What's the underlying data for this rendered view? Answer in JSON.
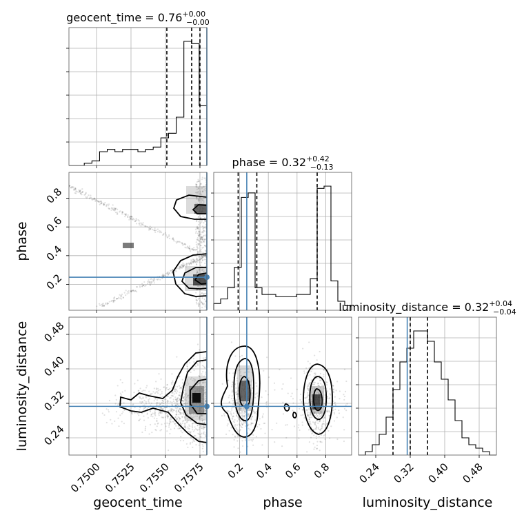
{
  "colors": {
    "truth": "#4682b4",
    "line": "#000000",
    "grid": "#b0b0b0"
  },
  "chart_data": {
    "type": "scatter",
    "subtype": "corner-plot",
    "grid": true,
    "truths": {
      "geocent_time": 0.758,
      "phase": 0.25,
      "luminosity_distance": 0.313
    },
    "parameters": [
      {
        "name": "geocent_time",
        "title_main": "geocent_time = 0.76",
        "title_sup": "+0.00",
        "title_sub": "−0.00",
        "axis_label": "geocent_time",
        "range": [
          0.748,
          0.758
        ],
        "ticks": [
          0.75,
          0.7525,
          0.755,
          0.7575
        ],
        "tick_labels": [
          "0.7500",
          "0.7525",
          "0.7550",
          "0.7575"
        ],
        "quantiles": [
          0.7551,
          0.7569,
          0.7575
        ],
        "hist_counts": [
          0,
          0,
          1,
          2,
          6,
          7,
          6,
          7,
          7,
          6,
          7,
          8,
          12,
          14,
          21,
          54,
          53,
          26
        ]
      },
      {
        "name": "phase",
        "title_main": "phase = 0.32",
        "title_sup": "+0.42",
        "title_sub": "−0.13",
        "axis_label": "phase",
        "range": [
          0.02,
          0.98
        ],
        "ticks": [
          0.2,
          0.4,
          0.6,
          0.8
        ],
        "tick_labels": [
          "0.2",
          "0.4",
          "0.6",
          "0.8"
        ],
        "quantiles": [
          0.19,
          0.32,
          0.74
        ],
        "hist_counts": [
          3,
          5,
          10,
          19,
          50,
          52,
          10,
          7,
          7,
          6,
          6,
          6,
          7,
          7,
          14,
          54,
          55,
          13,
          4,
          2
        ]
      },
      {
        "name": "luminosity_distance",
        "title_main": "luminosity_distance = 0.32",
        "title_sup": "+0.04",
        "title_sub": "−0.04",
        "axis_label": "luminosity_distance",
        "range": [
          0.2,
          0.52
        ],
        "ticks": [
          0.24,
          0.32,
          0.4,
          0.48
        ],
        "tick_labels": [
          "0.24",
          "0.32",
          "0.40",
          "0.48"
        ],
        "quantiles": [
          0.28,
          0.32,
          0.36
        ],
        "hist_counts": [
          0,
          1,
          3,
          6,
          11,
          19,
          27,
          31,
          36,
          36,
          33,
          27,
          22,
          16,
          10,
          5,
          3,
          2,
          1,
          0
        ]
      }
    ]
  }
}
